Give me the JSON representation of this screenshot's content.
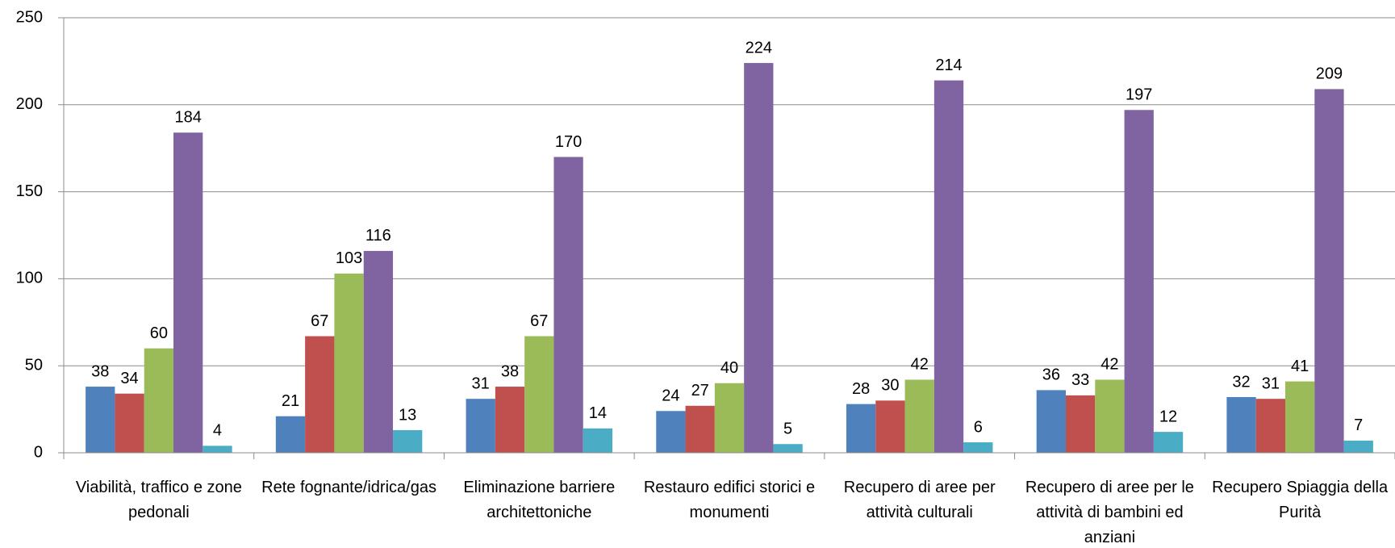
{
  "chart_data": {
    "type": "bar",
    "categories": [
      "Viabilità, traffico e zone pedonali",
      "Rete fognante/idrica/gas",
      "Eliminazione barriere architettoniche",
      "Restauro edifici storici e monumenti",
      "Recupero di aree per attività culturali",
      "Recupero di aree per le attività di bambini ed anziani",
      "Recupero Spiaggia della Purità"
    ],
    "series": [
      {
        "color": "#4f81bd",
        "values": [
          38,
          21,
          31,
          24,
          28,
          36,
          32
        ]
      },
      {
        "color": "#c0504d",
        "values": [
          34,
          67,
          38,
          27,
          30,
          33,
          31
        ]
      },
      {
        "color": "#9bbb59",
        "values": [
          60,
          103,
          67,
          40,
          42,
          42,
          41
        ]
      },
      {
        "color": "#8064a2",
        "values": [
          184,
          116,
          170,
          224,
          214,
          197,
          209
        ]
      },
      {
        "color": "#4bacc6",
        "values": [
          4,
          13,
          14,
          5,
          6,
          12,
          7
        ]
      }
    ],
    "ylim": [
      0,
      250
    ],
    "yticks": [
      0,
      50,
      100,
      150,
      200,
      250
    ],
    "grid": true
  }
}
